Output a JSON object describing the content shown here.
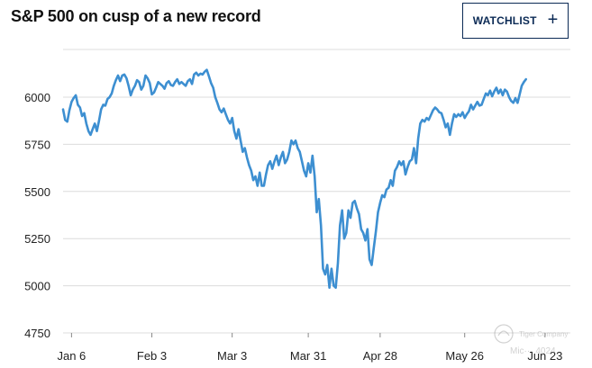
{
  "header": {
    "title": "S&P 500 on cusp of a new record",
    "watchlist_label": "WATCHLIST"
  },
  "watermark": {
    "company": "Tiger Company",
    "user": "Mic··· 4024"
  },
  "colors": {
    "line": "#3d8fd1",
    "grid": "#dcdcdc",
    "button_border": "#0b2a55"
  },
  "chart_data": {
    "type": "line",
    "title": "S&P 500 on cusp of a new record",
    "xlabel": "",
    "ylabel": "",
    "ylim": [
      4750,
      6200
    ],
    "xlim": [
      0,
      120
    ],
    "grid": true,
    "legend": "none",
    "yticks": [
      4750,
      5000,
      5250,
      5500,
      5750,
      6000
    ],
    "xticks": [
      {
        "label": "Jan 6",
        "x": 2
      },
      {
        "label": "Feb 3",
        "x": 21
      },
      {
        "label": "Mar 3",
        "x": 40
      },
      {
        "label": "Mar 31",
        "x": 58
      },
      {
        "label": "Apr 28",
        "x": 75
      },
      {
        "label": "May 26",
        "x": 95
      },
      {
        "label": "Jun 23",
        "x": 114
      }
    ],
    "series": [
      {
        "values": [
          [
            0,
            5935
          ],
          [
            0.5,
            5880
          ],
          [
            1,
            5870
          ],
          [
            1.5,
            5930
          ],
          [
            2,
            5975
          ],
          [
            2.5,
            5995
          ],
          [
            3,
            6010
          ],
          [
            3.5,
            5960
          ],
          [
            4,
            5945
          ],
          [
            4.5,
            5900
          ],
          [
            5,
            5915
          ],
          [
            5.5,
            5860
          ],
          [
            6,
            5820
          ],
          [
            6.5,
            5800
          ],
          [
            7,
            5830
          ],
          [
            7.5,
            5860
          ],
          [
            8,
            5820
          ],
          [
            8.5,
            5875
          ],
          [
            9,
            5935
          ],
          [
            9.5,
            5960
          ],
          [
            10,
            5955
          ],
          [
            10.5,
            5990
          ],
          [
            11,
            6000
          ],
          [
            11.5,
            6020
          ],
          [
            12,
            6060
          ],
          [
            12.5,
            6090
          ],
          [
            13,
            6115
          ],
          [
            13.5,
            6085
          ],
          [
            14,
            6115
          ],
          [
            14.5,
            6120
          ],
          [
            15,
            6100
          ],
          [
            15.5,
            6060
          ],
          [
            16,
            6010
          ],
          [
            16.5,
            6040
          ],
          [
            17,
            6060
          ],
          [
            17.5,
            6090
          ],
          [
            18,
            6080
          ],
          [
            18.5,
            6040
          ],
          [
            19,
            6060
          ],
          [
            19.5,
            6115
          ],
          [
            20,
            6100
          ],
          [
            20.5,
            6075
          ],
          [
            21,
            6015
          ],
          [
            21.5,
            6025
          ],
          [
            22,
            6050
          ],
          [
            22.5,
            6080
          ],
          [
            23,
            6070
          ],
          [
            23.5,
            6060
          ],
          [
            24,
            6045
          ],
          [
            24.5,
            6075
          ],
          [
            25,
            6085
          ],
          [
            25.5,
            6065
          ],
          [
            26,
            6060
          ],
          [
            26.5,
            6080
          ],
          [
            27,
            6095
          ],
          [
            27.5,
            6070
          ],
          [
            28,
            6080
          ],
          [
            28.5,
            6070
          ],
          [
            29,
            6060
          ],
          [
            29.5,
            6085
          ],
          [
            30,
            6095
          ],
          [
            30.5,
            6070
          ],
          [
            31,
            6120
          ],
          [
            31.5,
            6130
          ],
          [
            32,
            6115
          ],
          [
            32.5,
            6125
          ],
          [
            33,
            6120
          ],
          [
            33.5,
            6135
          ],
          [
            34,
            6145
          ],
          [
            34.5,
            6110
          ],
          [
            35,
            6075
          ],
          [
            35.5,
            6050
          ],
          [
            36,
            6000
          ],
          [
            36.5,
            5970
          ],
          [
            37,
            5935
          ],
          [
            37.5,
            5920
          ],
          [
            38,
            5940
          ],
          [
            38.5,
            5910
          ],
          [
            39,
            5880
          ],
          [
            39.5,
            5860
          ],
          [
            40,
            5890
          ],
          [
            40.5,
            5820
          ],
          [
            41,
            5780
          ],
          [
            41.5,
            5830
          ],
          [
            42,
            5770
          ],
          [
            42.5,
            5710
          ],
          [
            43,
            5730
          ],
          [
            43.5,
            5680
          ],
          [
            44,
            5640
          ],
          [
            44.5,
            5610
          ],
          [
            45,
            5560
          ],
          [
            45.5,
            5580
          ],
          [
            46,
            5530
          ],
          [
            46.5,
            5600
          ],
          [
            47,
            5530
          ],
          [
            47.5,
            5530
          ],
          [
            48,
            5590
          ],
          [
            48.5,
            5640
          ],
          [
            49,
            5660
          ],
          [
            49.5,
            5620
          ],
          [
            50,
            5660
          ],
          [
            50.5,
            5690
          ],
          [
            51,
            5640
          ],
          [
            51.5,
            5680
          ],
          [
            52,
            5710
          ],
          [
            52.5,
            5650
          ],
          [
            53,
            5670
          ],
          [
            53.5,
            5710
          ],
          [
            54,
            5770
          ],
          [
            54.5,
            5750
          ],
          [
            55,
            5770
          ],
          [
            55.5,
            5730
          ],
          [
            56,
            5710
          ],
          [
            56.5,
            5660
          ],
          [
            57,
            5610
          ],
          [
            57.5,
            5580
          ],
          [
            58,
            5650
          ],
          [
            58.5,
            5600
          ],
          [
            59,
            5690
          ],
          [
            59.5,
            5580
          ],
          [
            60,
            5390
          ],
          [
            60.5,
            5460
          ],
          [
            61,
            5320
          ],
          [
            61.5,
            5090
          ],
          [
            62,
            5060
          ],
          [
            62.5,
            5110
          ],
          [
            63,
            4990
          ],
          [
            63.5,
            5090
          ],
          [
            64,
            5000
          ],
          [
            64.5,
            4990
          ],
          [
            65,
            5120
          ],
          [
            65.5,
            5320
          ],
          [
            66,
            5400
          ],
          [
            66.5,
            5250
          ],
          [
            67,
            5280
          ],
          [
            67.5,
            5400
          ],
          [
            68,
            5360
          ],
          [
            68.5,
            5440
          ],
          [
            69,
            5450
          ],
          [
            69.5,
            5410
          ],
          [
            70,
            5380
          ],
          [
            70.5,
            5300
          ],
          [
            71,
            5280
          ],
          [
            71.5,
            5240
          ],
          [
            72,
            5300
          ],
          [
            72.5,
            5140
          ],
          [
            73,
            5110
          ],
          [
            73.5,
            5200
          ],
          [
            74,
            5290
          ],
          [
            74.5,
            5390
          ],
          [
            75,
            5440
          ],
          [
            75.5,
            5480
          ],
          [
            76,
            5470
          ],
          [
            76.5,
            5510
          ],
          [
            77,
            5520
          ],
          [
            77.5,
            5560
          ],
          [
            78,
            5530
          ],
          [
            78.5,
            5610
          ],
          [
            79,
            5630
          ],
          [
            79.5,
            5660
          ],
          [
            80,
            5640
          ],
          [
            80.5,
            5660
          ],
          [
            81,
            5590
          ],
          [
            81.5,
            5630
          ],
          [
            82,
            5660
          ],
          [
            82.5,
            5670
          ],
          [
            83,
            5730
          ],
          [
            83.5,
            5650
          ],
          [
            84,
            5780
          ],
          [
            84.5,
            5860
          ],
          [
            85,
            5880
          ],
          [
            85.5,
            5870
          ],
          [
            86,
            5890
          ],
          [
            86.5,
            5880
          ],
          [
            87,
            5905
          ],
          [
            87.5,
            5930
          ],
          [
            88,
            5945
          ],
          [
            88.5,
            5935
          ],
          [
            89,
            5920
          ],
          [
            89.5,
            5915
          ],
          [
            90,
            5880
          ],
          [
            90.5,
            5840
          ],
          [
            91,
            5860
          ],
          [
            91.5,
            5800
          ],
          [
            92,
            5860
          ],
          [
            92.5,
            5910
          ],
          [
            93,
            5895
          ],
          [
            93.5,
            5910
          ],
          [
            94,
            5900
          ],
          [
            94.5,
            5920
          ],
          [
            95,
            5890
          ],
          [
            95.5,
            5910
          ],
          [
            96,
            5925
          ],
          [
            96.5,
            5960
          ],
          [
            97,
            5935
          ],
          [
            97.5,
            5955
          ],
          [
            98,
            5975
          ],
          [
            98.5,
            5955
          ],
          [
            99,
            5960
          ],
          [
            99.5,
            5990
          ],
          [
            100,
            6020
          ],
          [
            100.5,
            6010
          ],
          [
            101,
            6035
          ],
          [
            101.5,
            6005
          ],
          [
            102,
            6030
          ],
          [
            102.5,
            6050
          ],
          [
            103,
            6020
          ],
          [
            103.5,
            6040
          ],
          [
            104,
            6010
          ],
          [
            104.5,
            6040
          ],
          [
            105,
            6030
          ],
          [
            105.5,
            6000
          ],
          [
            106,
            5980
          ],
          [
            106.5,
            5970
          ],
          [
            107,
            5995
          ],
          [
            107.5,
            5970
          ],
          [
            108,
            6015
          ],
          [
            108.5,
            6060
          ],
          [
            109,
            6080
          ],
          [
            109.5,
            6095
          ]
        ]
      }
    ]
  }
}
